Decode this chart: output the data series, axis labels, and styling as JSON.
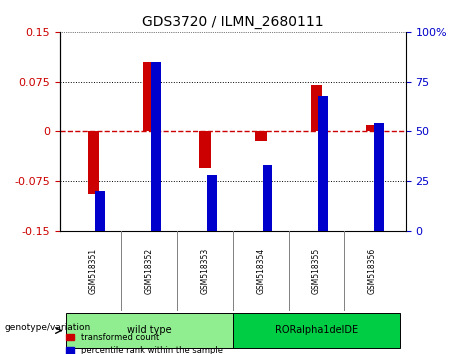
{
  "title": "GDS3720 / ILMN_2680111",
  "samples": [
    "GSM518351",
    "GSM518352",
    "GSM518353",
    "GSM518354",
    "GSM518355",
    "GSM518356"
  ],
  "transformed_count": [
    -0.095,
    0.105,
    -0.055,
    -0.015,
    0.07,
    0.01
  ],
  "percentile_rank": [
    20,
    85,
    28,
    33,
    68,
    54
  ],
  "groups": [
    {
      "label": "wild type",
      "samples": [
        0,
        1,
        2
      ],
      "color": "#90EE90"
    },
    {
      "label": "RORalpha1delDE",
      "samples": [
        3,
        4,
        5
      ],
      "color": "#00CC44"
    }
  ],
  "ylim_left": [
    -0.15,
    0.15
  ],
  "ylim_right": [
    0,
    100
  ],
  "yticks_left": [
    -0.15,
    -0.075,
    0,
    0.075,
    0.15
  ],
  "yticks_right": [
    0,
    25,
    50,
    75,
    100
  ],
  "ytick_labels_left": [
    "-0.15",
    "-0.075",
    "0",
    "0.075",
    "0.15"
  ],
  "ytick_labels_right": [
    "0",
    "25",
    "50",
    "75",
    "100%"
  ],
  "bar_width": 0.35,
  "red_color": "#CC0000",
  "blue_color": "#0000CC",
  "zero_line_color": "#CC0000",
  "grid_color": "#000000",
  "bg_color": "#FFFFFF",
  "legend_red": "transformed count",
  "legend_blue": "percentile rank within the sample",
  "genotype_label": "genotype/variation",
  "group_bg_color": "#D3D3D3",
  "sample_label_bg": "#D3D3D3"
}
